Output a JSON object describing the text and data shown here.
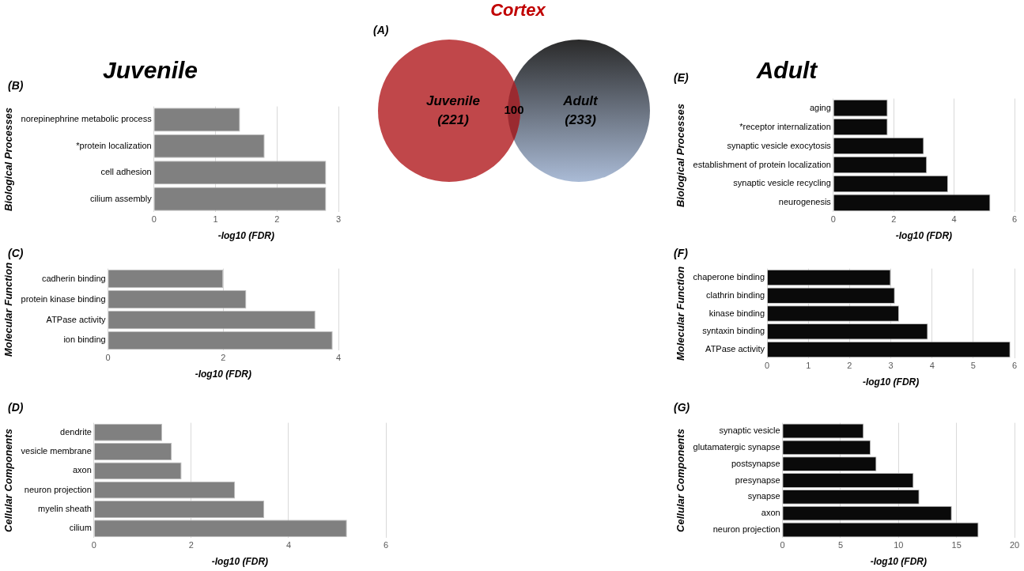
{
  "chart_data": [
    {
      "type": "bar",
      "title": "Juvenile",
      "annotations": [
        "(B)"
      ],
      "orientation": "horizontal",
      "ylabel": "Biological Processes",
      "xlabel": "-log10 (FDR)",
      "categories": [
        "norepinephrine metabolic process",
        "*protein localization",
        "cell adhesion",
        "cilium assembly"
      ],
      "values": [
        1.4,
        1.8,
        2.8,
        2.8
      ],
      "color": "#808080",
      "xlim": [
        0,
        3
      ],
      "xticks": [
        0,
        1,
        2,
        3
      ],
      "grid": "x"
    },
    {
      "type": "bar",
      "annotations": [
        "(C)"
      ],
      "orientation": "horizontal",
      "ylabel": "Molecular Function",
      "xlabel": "-log10 (FDR)",
      "categories": [
        "cadherin binding",
        "protein kinase binding",
        "ATPase activity",
        "ion binding"
      ],
      "values": [
        2.0,
        2.4,
        3.6,
        3.9
      ],
      "color": "#808080",
      "xlim": [
        0,
        4
      ],
      "xticks": [
        0,
        2,
        4
      ],
      "grid": "x"
    },
    {
      "type": "bar",
      "annotations": [
        "(D)"
      ],
      "orientation": "horizontal",
      "ylabel": "Cellular Components",
      "xlabel": "-log10 (FDR)",
      "categories": [
        "dendrite",
        "vesicle membrane",
        "axon",
        "neuron projection",
        "myelin sheath",
        "cilium"
      ],
      "values": [
        1.4,
        1.6,
        1.8,
        2.9,
        3.5,
        5.2
      ],
      "color": "#808080",
      "xlim": [
        0,
        6
      ],
      "xticks": [
        0,
        2,
        4,
        6
      ],
      "grid": "x"
    },
    {
      "type": "other",
      "title": "Cortex",
      "annotations": [
        "(A)"
      ],
      "categories": [
        "Juvenile",
        null,
        "Adult"
      ],
      "values": [
        221,
        100,
        233
      ],
      "value_labels": [
        "(221)",
        "100",
        "(233)"
      ],
      "colors": [
        "#c0474a",
        "#9a2a30",
        "#aabbd6"
      ]
    },
    {
      "type": "bar",
      "title": "Adult",
      "annotations": [
        "(E)"
      ],
      "orientation": "horizontal",
      "ylabel": "Biological Processes",
      "xlabel": "-log10 (FDR)",
      "categories": [
        "aging",
        "*receptor internalization",
        "synaptic vesicle exocytosis",
        "establishment of protein localization",
        "synaptic vesicle recycling",
        "neurogenesis"
      ],
      "values": [
        1.8,
        1.8,
        3.0,
        3.1,
        3.8,
        5.2
      ],
      "color": "#0a0a0a",
      "xlim": [
        0,
        6
      ],
      "xticks": [
        0,
        2,
        4,
        6
      ],
      "grid": "x"
    },
    {
      "type": "bar",
      "annotations": [
        "(F)"
      ],
      "orientation": "horizontal",
      "ylabel": "Molecular Function",
      "xlabel": "-log10 (FDR)",
      "categories": [
        "chaperone binding",
        "clathrin binding",
        "kinase binding",
        "syntaxin binding",
        "ATPase activity"
      ],
      "values": [
        3.0,
        3.1,
        3.2,
        3.9,
        5.9
      ],
      "color": "#0a0a0a",
      "xlim": [
        0,
        6
      ],
      "xticks": [
        0,
        1,
        2,
        3,
        4,
        5,
        6
      ],
      "grid": "x"
    },
    {
      "type": "bar",
      "annotations": [
        "(G)"
      ],
      "orientation": "horizontal",
      "ylabel": "Cellular Components",
      "xlabel": "-log10 (FDR)",
      "categories": [
        "synaptic vesicle",
        "glutamatergic synapse",
        "postsynapse",
        "presynapse",
        "synapse",
        "axon",
        "neuron projection"
      ],
      "values": [
        7.0,
        7.6,
        8.1,
        11.3,
        11.8,
        14.6,
        16.9
      ],
      "color": "#0a0a0a",
      "xlim": [
        0,
        20
      ],
      "xticks": [
        0,
        5,
        10,
        15,
        20
      ],
      "grid": "x"
    }
  ]
}
